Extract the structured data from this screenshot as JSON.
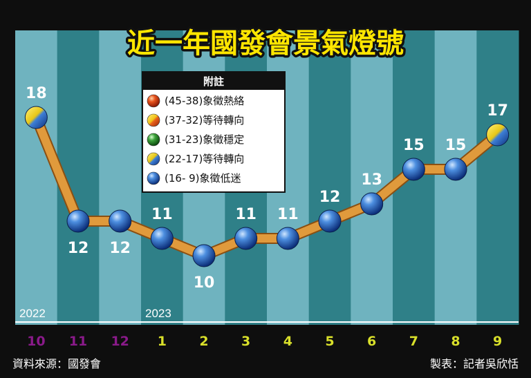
{
  "chart_data": {
    "type": "line",
    "title": "近一年國發會景氣燈號",
    "categories": [
      "10",
      "11",
      "12",
      "1",
      "2",
      "3",
      "4",
      "5",
      "6",
      "7",
      "8",
      "9"
    ],
    "values": [
      18,
      12,
      12,
      11,
      10,
      11,
      11,
      12,
      13,
      15,
      15,
      17
    ],
    "point_signals": [
      "yellow-blue",
      "blue",
      "blue",
      "blue",
      "blue",
      "blue",
      "blue",
      "blue",
      "blue",
      "blue",
      "blue",
      "yellow-blue"
    ],
    "year_labels": [
      {
        "at": "10",
        "text": "2022"
      },
      {
        "at": "1",
        "text": "2023"
      }
    ],
    "month_colors": {
      "2022": "#8a1a8a",
      "2023": "#d8df2a"
    },
    "ylim": [
      6,
      20
    ],
    "grid": false,
    "legend_position": "top-center",
    "legend": {
      "title": "附註",
      "items": [
        {
          "range": "(45-38)",
          "meaning": "象徵熱絡",
          "signal": "red"
        },
        {
          "range": "(37-32)",
          "meaning": "等待轉向",
          "signal": "yellow-red"
        },
        {
          "range": "(31-23)",
          "meaning": "象徵穩定",
          "signal": "green"
        },
        {
          "range": "(22-17)",
          "meaning": "等待轉向",
          "signal": "yellow-blue"
        },
        {
          "range": "(16-  9)",
          "meaning": "象徵低迷",
          "signal": "blue"
        }
      ]
    },
    "colors": {
      "line": "#e09a3c",
      "band_light": "#6fb3bf",
      "band_dark": "#2f8088",
      "frame": "#0e0e0e"
    }
  },
  "footer": {
    "source": "資料來源：國發會",
    "credit": "製表：記者吳欣恬"
  }
}
